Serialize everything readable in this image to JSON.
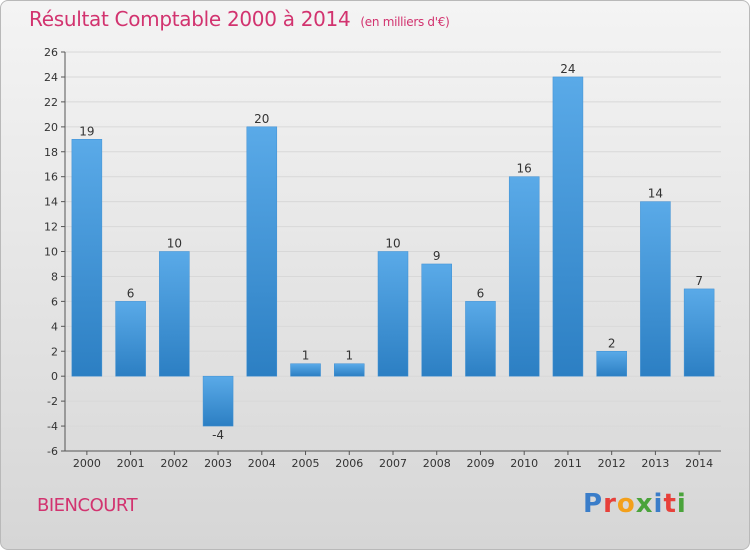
{
  "header": {
    "title": "Résultat Comptable 2000 à 2014",
    "subtitle": "(en milliers d'€)"
  },
  "footer": {
    "commune": "BIENCOURT",
    "logo": "Proxiti"
  },
  "colors": {
    "title": "#d2336f",
    "bar_top": "#5aaae8",
    "bar_bottom": "#2c7fc3",
    "logo_letters": [
      "#3a7dc9",
      "#e7403a",
      "#f3a01b",
      "#4aa33b",
      "#3a7dc9",
      "#e7403a",
      "#4aa33b"
    ]
  },
  "chart_data": {
    "type": "bar",
    "title": "Résultat Comptable 2000 à 2014",
    "subtitle": "(en milliers d'€)",
    "xlabel": "",
    "ylabel": "",
    "categories": [
      "2000",
      "2001",
      "2002",
      "2003",
      "2004",
      "2005",
      "2006",
      "2007",
      "2008",
      "2009",
      "2010",
      "2011",
      "2012",
      "2013",
      "2014"
    ],
    "values": [
      19,
      6,
      10,
      -4,
      20,
      1,
      1,
      10,
      9,
      6,
      16,
      24,
      2,
      14,
      7
    ],
    "ylim": [
      -6,
      26
    ],
    "yticks": [
      -6,
      -4,
      -2,
      0,
      2,
      4,
      6,
      8,
      10,
      12,
      14,
      16,
      18,
      20,
      22,
      24,
      26
    ],
    "grid": true
  }
}
